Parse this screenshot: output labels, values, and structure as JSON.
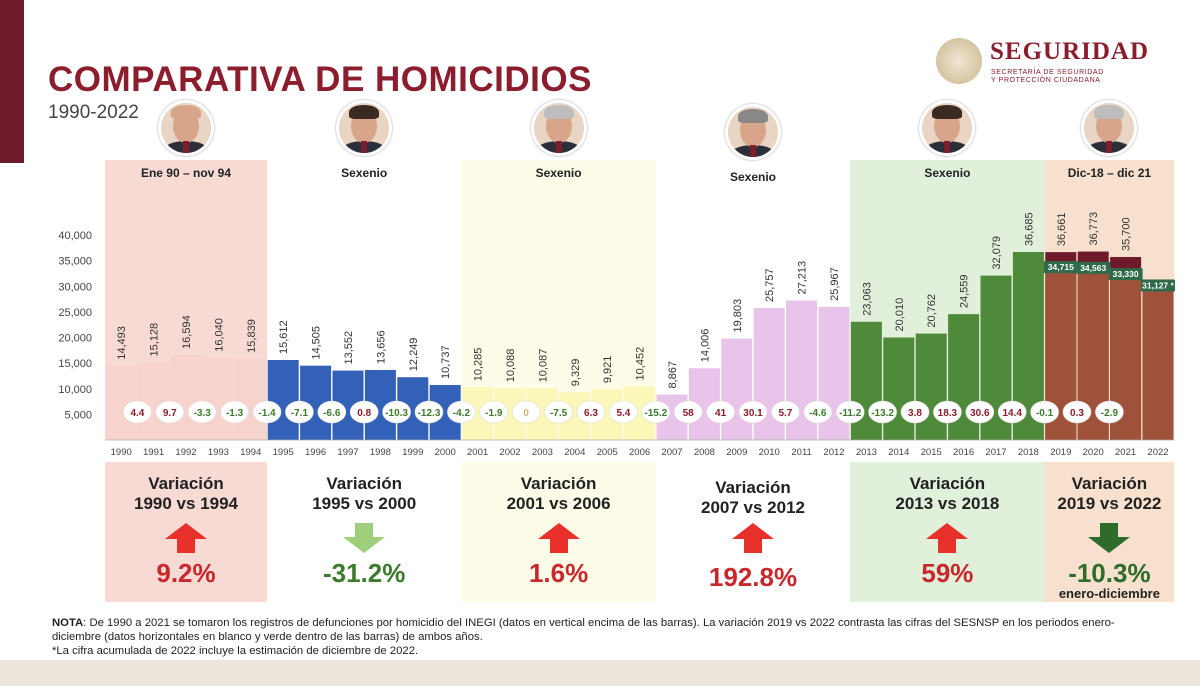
{
  "header": {
    "title": "COMPARATIVA DE HOMICIDIOS",
    "subtitle": "1990-2022"
  },
  "logo": {
    "name": "SEGURIDAD",
    "sub_line1": "SECRETARÍA DE SEGURIDAD",
    "sub_line2": "Y PROTECCIÓN CIUDADANA"
  },
  "periods": [
    {
      "label": "Ene 90 – nov 94",
      "bg": "#f6d3cd",
      "bar": "#f6d3cd",
      "avatar": "bald"
    },
    {
      "label": "Sexenio",
      "bg": "#ffffff",
      "bar": "#3461b8",
      "avatar": "dark"
    },
    {
      "label": "Sexenio",
      "bg": "#fdfbe4",
      "bar": "#fbf7b8",
      "avatar": "gray"
    },
    {
      "label": "Sexenio",
      "bg": "#ffffff",
      "bar": "#e8c3ea",
      "avatar": "mix"
    },
    {
      "label": "Sexenio",
      "bg": "#dcedd5",
      "bar": "#4f8a3a",
      "avatar": "dark"
    },
    {
      "label": "Dic-18 – dic 21",
      "bg": "#f6dcc5",
      "bar": "#a0513a",
      "avatar": "gray"
    }
  ],
  "chart_data": {
    "type": "bar",
    "categories": [
      "1990",
      "1991",
      "1992",
      "1993",
      "1994",
      "1995",
      "1996",
      "1997",
      "1998",
      "1999",
      "2000",
      "2001",
      "2002",
      "2003",
      "2004",
      "2005",
      "2006",
      "2007",
      "2008",
      "2009",
      "2010",
      "2011",
      "2012",
      "2013",
      "2014",
      "2015",
      "2016",
      "2017",
      "2018",
      "2019",
      "2020",
      "2021",
      "2022"
    ],
    "series": [
      {
        "values": [
          14493,
          15128,
          16594,
          16040,
          15839,
          15612,
          14505,
          13552,
          13656,
          12249,
          10737,
          10285,
          10088,
          10087,
          9329,
          9921,
          10452,
          8867,
          14006,
          19803,
          25757,
          27213,
          25967,
          23063,
          20010,
          20762,
          24559,
          32079,
          36685,
          36661,
          36773,
          35700,
          null
        ]
      },
      {
        "values": [
          null,
          null,
          null,
          null,
          null,
          null,
          null,
          null,
          null,
          null,
          null,
          null,
          null,
          null,
          null,
          null,
          null,
          null,
          null,
          null,
          null,
          null,
          null,
          null,
          null,
          null,
          null,
          null,
          null,
          34715,
          34563,
          33330,
          31127
        ]
      }
    ],
    "value_labels": [
      "14,493",
      "15,128",
      "16,594",
      "16,040",
      "15,839",
      "15,612",
      "14,505",
      "13,552",
      "13,656",
      "12,249",
      "10,737",
      "10,285",
      "10,088",
      "10,087",
      "9,329",
      "9,921",
      "10,452",
      "8,867",
      "14,006",
      "19,803",
      "25,757",
      "27,213",
      "25,967",
      "23,063",
      "20,010",
      "20,762",
      "24,559",
      "32,079",
      "36,685",
      "36,661",
      "36,773",
      "35,700",
      ""
    ],
    "sesnsp_labels": [
      "34,715",
      "34,563",
      "33,330",
      "31,127 *"
    ],
    "variations": [
      {
        "x": 1991,
        "label": "4.4",
        "color": "#8b1d2c"
      },
      {
        "x": 1992,
        "label": "9.7",
        "color": "#8b1d2c"
      },
      {
        "x": 1993,
        "label": "-3.3",
        "color": "#3c7a2c"
      },
      {
        "x": 1994,
        "label": "-1.3",
        "color": "#3c7a2c"
      },
      {
        "x": 1995,
        "label": "-1.4",
        "color": "#3c7a2c"
      },
      {
        "x": 1996,
        "label": "-7.1",
        "color": "#3c7a2c"
      },
      {
        "x": 1997,
        "label": "-6.6",
        "color": "#3c7a2c"
      },
      {
        "x": 1998,
        "label": "0.8",
        "color": "#8b1d2c"
      },
      {
        "x": 1999,
        "label": "-10.3",
        "color": "#3c7a2c"
      },
      {
        "x": 2000,
        "label": "-12.3",
        "color": "#3c7a2c"
      },
      {
        "x": 2001,
        "label": "-4.2",
        "color": "#3c7a2c"
      },
      {
        "x": 2002,
        "label": "-1.9",
        "color": "#3c7a2c"
      },
      {
        "x": 2003,
        "label": "0",
        "color": "#c8b87a"
      },
      {
        "x": 2004,
        "label": "-7.5",
        "color": "#3c7a2c"
      },
      {
        "x": 2005,
        "label": "6.3",
        "color": "#8b1d2c"
      },
      {
        "x": 2006,
        "label": "5.4",
        "color": "#8b1d2c"
      },
      {
        "x": 2007,
        "label": "-15.2",
        "color": "#3c7a2c"
      },
      {
        "x": 2008,
        "label": "58",
        "color": "#8b1d2c"
      },
      {
        "x": 2009,
        "label": "41",
        "color": "#8b1d2c"
      },
      {
        "x": 2010,
        "label": "30.1",
        "color": "#8b1d2c"
      },
      {
        "x": 2011,
        "label": "5.7",
        "color": "#8b1d2c"
      },
      {
        "x": 2012,
        "label": "-4.6",
        "color": "#3c7a2c"
      },
      {
        "x": 2013,
        "label": "-11.2",
        "color": "#3c7a2c"
      },
      {
        "x": 2014,
        "label": "-13.2",
        "color": "#3c7a2c"
      },
      {
        "x": 2015,
        "label": "3.8",
        "color": "#8b1d2c"
      },
      {
        "x": 2016,
        "label": "18.3",
        "color": "#8b1d2c"
      },
      {
        "x": 2017,
        "label": "30.6",
        "color": "#8b1d2c"
      },
      {
        "x": 2018,
        "label": "14.4",
        "color": "#8b1d2c"
      },
      {
        "x": 2019,
        "label": "-0.1",
        "color": "#3c7a2c"
      },
      {
        "x": 2020,
        "label": "0.3",
        "color": "#8b1d2c"
      },
      {
        "x": 2021,
        "label": "-2.9",
        "color": "#3c7a2c"
      }
    ],
    "y_ticks": [
      5000,
      10000,
      15000,
      20000,
      25000,
      30000,
      35000,
      40000
    ],
    "y_tick_labels": [
      "5,000",
      "10,000",
      "15,000",
      "20,000",
      "25,000",
      "30,000",
      "35,000",
      "40,000"
    ],
    "ylim": [
      0,
      40000
    ],
    "grid": false,
    "legend": "none"
  },
  "summaries": [
    {
      "line1": "Variación",
      "line2": "1990 vs 1994",
      "value": "9.2%",
      "direction": "up",
      "value_color": "#c8282c",
      "arrow_color": "#e8312a"
    },
    {
      "line1": "Variación",
      "line2": "1995 vs 2000",
      "value": "-31.2%",
      "direction": "down",
      "value_color": "#3c7a2c",
      "arrow_color": "#9fcf7a"
    },
    {
      "line1": "Variación",
      "line2": "2001 vs 2006",
      "value": "1.6%",
      "direction": "up",
      "value_color": "#c8282c",
      "arrow_color": "#e8312a"
    },
    {
      "line1": "Variación",
      "line2": "2007 vs 2012",
      "value": "192.8%",
      "direction": "up",
      "value_color": "#c8282c",
      "arrow_color": "#e8312a"
    },
    {
      "line1": "Variación",
      "line2": "2013 vs 2018",
      "value": "59%",
      "direction": "up",
      "value_color": "#c8282c",
      "arrow_color": "#e8312a"
    },
    {
      "line1": "Variación",
      "line2": "2019 vs 2022",
      "value": "-10.3%",
      "direction": "down",
      "value_color": "#2f6b2a",
      "arrow_color": "#2f6b2a",
      "note": "enero-diciembre"
    }
  ],
  "note": {
    "label": "NOTA",
    "line1": ": De 1990 a 2021 se tomaron los registros de defunciones por homicidio del INEGI (datos en vertical encima de las barras). La variación 2019 vs 2022 contrasta las cifras del SESNSP en los periodos enero-diciembre (datos horizontales en blanco y verde dentro de las barras) de ambos años.",
    "line2": "*La cifra acumulada de 2022 incluye la estimación de diciembre de 2022."
  }
}
